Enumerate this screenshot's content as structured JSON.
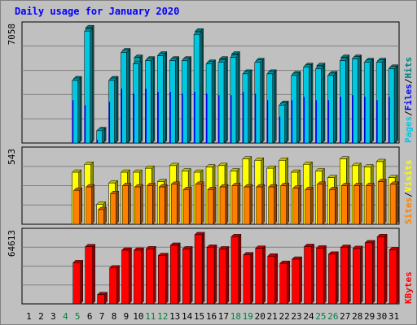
{
  "title": "Daily usage for January 2020",
  "colors": {
    "hits": "#00a0a0",
    "files": "#0000ff",
    "pages": "#00c8e0",
    "visits": "#ffff00",
    "sites": "#ff8000",
    "kbytes": "#ff0000",
    "weekend_day_label": "#008040",
    "day_label": "#000000",
    "grid": "#808080",
    "panel_bg": "#c0c0c0"
  },
  "chart_data": [
    {
      "type": "bar",
      "panel": "hits-files-pages",
      "y_max_label": "7058",
      "ylim": [
        0,
        7058
      ],
      "legend": [
        {
          "label": "Pages",
          "color": "#00c8e0"
        },
        {
          "label": "/",
          "color": "#000000"
        },
        {
          "label": "Files",
          "color": "#0000ff"
        },
        {
          "label": "/",
          "color": "#000000"
        },
        {
          "label": "Hits",
          "color": "#008080"
        }
      ],
      "categories": [
        "1",
        "2",
        "3",
        "4",
        "5",
        "6",
        "7",
        "8",
        "9",
        "10",
        "11",
        "12",
        "13",
        "14",
        "15",
        "16",
        "17",
        "18",
        "19",
        "20",
        "21",
        "22",
        "23",
        "24",
        "25",
        "26",
        "27",
        "28",
        "29",
        "30",
        "31"
      ],
      "series": [
        {
          "name": "Hits",
          "values": [
            0,
            0,
            0,
            0,
            3900,
            7000,
            800,
            3900,
            5600,
            5200,
            5100,
            5400,
            5100,
            5100,
            6800,
            4900,
            5100,
            5400,
            4300,
            5000,
            4300,
            2400,
            4200,
            4700,
            4700,
            4200,
            5200,
            5200,
            5000,
            5000,
            4600
          ]
        },
        {
          "name": "Files",
          "values": [
            0,
            0,
            0,
            0,
            2600,
            2300,
            200,
            2500,
            3300,
            3000,
            3300,
            3100,
            3100,
            3000,
            3100,
            3000,
            2900,
            2900,
            3100,
            3000,
            2600,
            1600,
            2600,
            2800,
            2600,
            2600,
            2800,
            2900,
            2800,
            2600,
            2800
          ]
        },
        {
          "name": "Pages",
          "values": [
            0,
            0,
            0,
            0,
            3800,
            6800,
            750,
            3800,
            5500,
            4800,
            5000,
            5300,
            5000,
            5000,
            6600,
            4800,
            4900,
            5200,
            4200,
            4900,
            4200,
            2300,
            4100,
            4600,
            4500,
            4100,
            5000,
            5100,
            4900,
            4900,
            4500
          ]
        }
      ]
    },
    {
      "type": "bar",
      "panel": "visits-sites",
      "y_max_label": "543",
      "ylim": [
        0,
        543
      ],
      "legend": [
        {
          "label": "Sites",
          "color": "#ff8000"
        },
        {
          "label": "/",
          "color": "#000000"
        },
        {
          "label": "Visits",
          "color": "#ffff00"
        }
      ],
      "categories": [
        "1",
        "2",
        "3",
        "4",
        "5",
        "6",
        "7",
        "8",
        "9",
        "10",
        "11",
        "12",
        "13",
        "14",
        "15",
        "16",
        "17",
        "18",
        "19",
        "20",
        "21",
        "22",
        "23",
        "24",
        "25",
        "26",
        "27",
        "28",
        "29",
        "30",
        "31"
      ],
      "series": [
        {
          "name": "Visits",
          "values": [
            0,
            0,
            0,
            0,
            390,
            450,
            150,
            310,
            390,
            390,
            420,
            320,
            440,
            400,
            390,
            430,
            440,
            400,
            490,
            480,
            420,
            480,
            390,
            450,
            400,
            350,
            490,
            440,
            430,
            470,
            350
          ]
        },
        {
          "name": "Sites",
          "values": [
            0,
            0,
            0,
            0,
            255,
            280,
            110,
            230,
            290,
            280,
            290,
            280,
            300,
            260,
            300,
            260,
            280,
            290,
            280,
            280,
            280,
            290,
            270,
            260,
            300,
            260,
            290,
            290,
            290,
            320,
            300
          ]
        }
      ]
    },
    {
      "type": "bar",
      "panel": "kbytes",
      "y_max_label": "64613",
      "ylim": [
        0,
        64613
      ],
      "legend": [
        {
          "label": "KBytes",
          "color": "#ff0000"
        }
      ],
      "categories": [
        "1",
        "2",
        "3",
        "4",
        "5",
        "6",
        "7",
        "8",
        "9",
        "10",
        "11",
        "12",
        "13",
        "14",
        "15",
        "16",
        "17",
        "18",
        "19",
        "20",
        "21",
        "22",
        "23",
        "24",
        "25",
        "26",
        "27",
        "28",
        "29",
        "30",
        "31"
      ],
      "series": [
        {
          "name": "KBytes",
          "values": [
            0,
            0,
            0,
            0,
            37600,
            52200,
            8400,
            32800,
            49000,
            49000,
            50300,
            44100,
            53500,
            50200,
            63200,
            51700,
            50200,
            61400,
            44800,
            50800,
            43600,
            37000,
            40800,
            52400,
            51000,
            45400,
            51600,
            50600,
            55800,
            61400,
            49400
          ]
        }
      ]
    }
  ],
  "x_axis": {
    "days": [
      {
        "label": "1",
        "weekend": false
      },
      {
        "label": "2",
        "weekend": false
      },
      {
        "label": "3",
        "weekend": false
      },
      {
        "label": "4",
        "weekend": true
      },
      {
        "label": "5",
        "weekend": true
      },
      {
        "label": "6",
        "weekend": false
      },
      {
        "label": "7",
        "weekend": false
      },
      {
        "label": "8",
        "weekend": false
      },
      {
        "label": "9",
        "weekend": false
      },
      {
        "label": "10",
        "weekend": false
      },
      {
        "label": "11",
        "weekend": true
      },
      {
        "label": "12",
        "weekend": true
      },
      {
        "label": "13",
        "weekend": false
      },
      {
        "label": "14",
        "weekend": false
      },
      {
        "label": "15",
        "weekend": false
      },
      {
        "label": "16",
        "weekend": false
      },
      {
        "label": "17",
        "weekend": false
      },
      {
        "label": "18",
        "weekend": true
      },
      {
        "label": "19",
        "weekend": true
      },
      {
        "label": "20",
        "weekend": false
      },
      {
        "label": "21",
        "weekend": false
      },
      {
        "label": "22",
        "weekend": false
      },
      {
        "label": "23",
        "weekend": false
      },
      {
        "label": "24",
        "weekend": false
      },
      {
        "label": "25",
        "weekend": true
      },
      {
        "label": "26",
        "weekend": true
      },
      {
        "label": "27",
        "weekend": false
      },
      {
        "label": "28",
        "weekend": false
      },
      {
        "label": "29",
        "weekend": false
      },
      {
        "label": "30",
        "weekend": false
      },
      {
        "label": "31",
        "weekend": false
      }
    ]
  }
}
